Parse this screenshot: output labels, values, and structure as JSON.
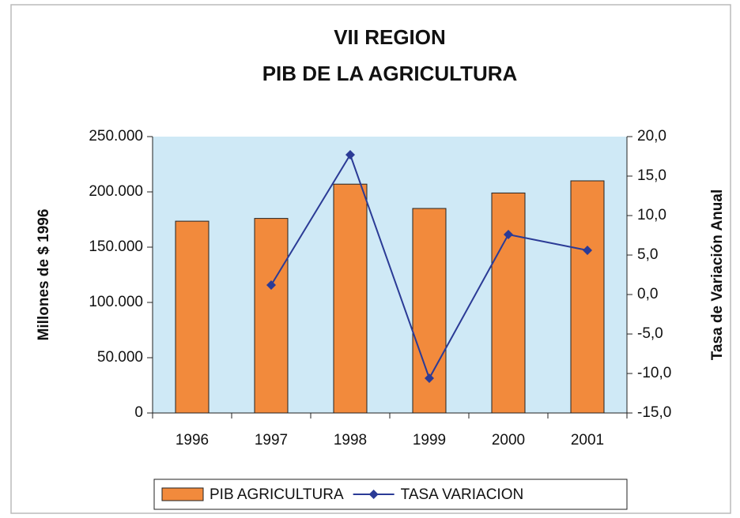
{
  "chart_data": {
    "type": "bar",
    "title": [
      "VII REGION",
      "PIB DE LA AGRICULTURA"
    ],
    "y_label": "Millones de $ 1996",
    "y2_label": "Tasa de Variación Anual",
    "categories": [
      "1996",
      "1997",
      "1998",
      "1999",
      "2000",
      "2001"
    ],
    "series": [
      {
        "name": "PIB AGRICULTURA",
        "type": "bar",
        "color": "#f28a3c",
        "values": [
          173500,
          176000,
          207000,
          185000,
          199000,
          210000
        ]
      },
      {
        "name": "TASA VARIACION",
        "type": "line",
        "axis": "y2",
        "color": "#2b3b96",
        "values": [
          null,
          1.2,
          17.7,
          -10.6,
          7.6,
          5.6
        ]
      }
    ],
    "ylim": [
      0,
      250000
    ],
    "yticks": [
      0,
      {
        "value": 50000,
        "label": "50.000"
      },
      {
        "value": 100000,
        "label": "100.000"
      },
      {
        "value": 150000,
        "label": "150.000"
      },
      {
        "value": 200000,
        "label": "200.000"
      },
      {
        "value": 250000,
        "label": "250.000"
      }
    ],
    "y2lim": [
      -15,
      20
    ],
    "y2ticks": [
      {
        "value": -15,
        "label": "-15,0"
      },
      {
        "value": -10,
        "label": "-10,0"
      },
      {
        "value": -5,
        "label": "-5,0"
      },
      {
        "value": 0,
        "label": "0,0"
      },
      {
        "value": 5,
        "label": "5,0"
      },
      {
        "value": 10,
        "label": "10,0"
      },
      {
        "value": 15,
        "label": "15,0"
      },
      {
        "value": 20,
        "label": "20,0"
      }
    ],
    "plot_background": "#cfe9f6",
    "legend": "bottom"
  }
}
